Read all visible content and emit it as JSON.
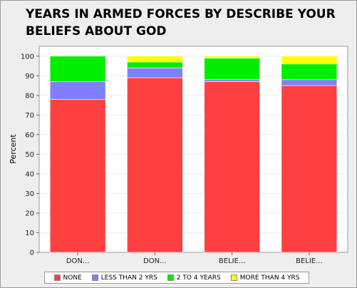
{
  "chart_data": {
    "type": "bar",
    "stacked": true,
    "title": "YEARS IN ARMED FORCES BY DESCRIBE YOUR BELIEFS ABOUT GOD",
    "xlabel": "",
    "ylabel": "Percent",
    "ylim": [
      0,
      105
    ],
    "yticks": [
      0,
      10,
      20,
      30,
      40,
      50,
      60,
      70,
      80,
      90,
      100
    ],
    "grid": true,
    "legend_position": "bottom",
    "categories": [
      "DON...",
      "DON...",
      "BELIE...",
      "BELIE..."
    ],
    "series": [
      {
        "name": "NONE",
        "color": "#ff4040",
        "values": [
          78,
          89,
          87,
          85
        ]
      },
      {
        "name": "LESS THAN 2 YRS",
        "color": "#8080ff",
        "values": [
          9,
          5,
          1,
          3
        ]
      },
      {
        "name": "2 TO 4 YEARS",
        "color": "#00ee00",
        "values": [
          13,
          3,
          11,
          8
        ]
      },
      {
        "name": "MORE THAN 4 YRS",
        "color": "#ffff00",
        "values": [
          0,
          3,
          1,
          4
        ]
      }
    ]
  }
}
